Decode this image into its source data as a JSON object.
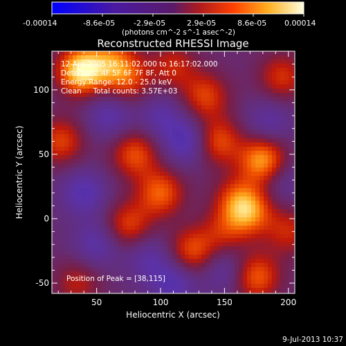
{
  "colorbar": {
    "tick_labels": [
      "-0.00014",
      "-8.6e-05",
      "-2.9e-05",
      "2.9e-05",
      "8.6e-05",
      "0.00014"
    ],
    "unit_label": "(photons cm^-2 s^-1 asec^-2)"
  },
  "chart_data": {
    "type": "heatmap",
    "title": "Reconstructed RHESSI Image",
    "xlabel": "Heliocentric X (arcsec)",
    "ylabel": "Heliocentric Y (arcsec)",
    "xlim": [
      15,
      205
    ],
    "ylim": [
      -58,
      130
    ],
    "xticks": [
      50,
      100,
      150,
      200
    ],
    "yticks": [
      -50,
      0,
      50,
      100
    ],
    "value_range": [
      -0.00014,
      0.00014
    ],
    "colormap": [
      "#0000c8",
      "#6a2bb0",
      "#6a2b8a",
      "#8a1a4a",
      "#c82000",
      "#ff6a00",
      "#ffb020",
      "#ffffa0"
    ],
    "annotations": [
      "12-Apr-2005 16:11:02.000 to 16:17:02.000",
      "Detectors: 4F 5F 6F 7F 8F, Att 0",
      "Energy Range: 12.0 - 25.0 keV",
      "Clean     Total counts: 3.57E+03"
    ],
    "peak_label": "Position of Peak = [38,115]",
    "sources": [
      {
        "x": 38,
        "y": 115,
        "amp": 1.0
      },
      {
        "x": 62,
        "y": 122,
        "amp": 0.55
      },
      {
        "x": 75,
        "y": 108,
        "amp": 0.45
      },
      {
        "x": 110,
        "y": 118,
        "amp": 0.4
      },
      {
        "x": 135,
        "y": 95,
        "amp": 0.5
      },
      {
        "x": 145,
        "y": 60,
        "amp": 0.55
      },
      {
        "x": 180,
        "y": 45,
        "amp": 0.8
      },
      {
        "x": 195,
        "y": 110,
        "amp": 0.45
      },
      {
        "x": 22,
        "y": 60,
        "amp": 0.5
      },
      {
        "x": 80,
        "y": 50,
        "amp": 0.55
      },
      {
        "x": 100,
        "y": 20,
        "amp": 0.6
      },
      {
        "x": 75,
        "y": -5,
        "amp": 0.5
      },
      {
        "x": 160,
        "y": 15,
        "amp": 0.45
      },
      {
        "x": 170,
        "y": 5,
        "amp": 0.6
      },
      {
        "x": 125,
        "y": -25,
        "amp": 0.55
      },
      {
        "x": 175,
        "y": -45,
        "amp": 0.6
      },
      {
        "x": 200,
        "y": -10,
        "amp": 0.4
      },
      {
        "x": 35,
        "y": -50,
        "amp": 0.35
      },
      {
        "x": 150,
        "y": -10,
        "amp": 0.35
      },
      {
        "x": 40,
        "y": 20,
        "amp": -0.4
      },
      {
        "x": 120,
        "y": 60,
        "amp": -0.45
      },
      {
        "x": 60,
        "y": 80,
        "amp": -0.35
      },
      {
        "x": 100,
        "y": 80,
        "amp": -0.3
      },
      {
        "x": 185,
        "y": 75,
        "amp": -0.3
      },
      {
        "x": 50,
        "y": -20,
        "amp": -0.35
      },
      {
        "x": 110,
        "y": -50,
        "amp": -0.4
      },
      {
        "x": 150,
        "y": -40,
        "amp": -0.3
      },
      {
        "x": 90,
        "y": -30,
        "amp": -0.3
      },
      {
        "x": 195,
        "y": 30,
        "amp": -0.25
      }
    ]
  },
  "footer": {
    "date": "9-Jul-2013 10:37"
  }
}
